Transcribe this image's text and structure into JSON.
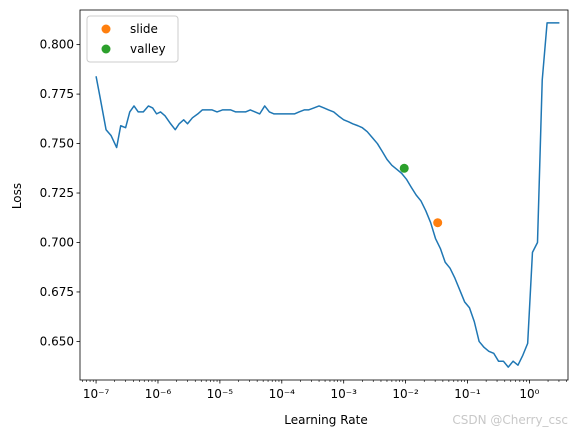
{
  "chart_data": {
    "type": "line",
    "xlabel": "Learning Rate",
    "ylabel": "Loss",
    "xscale": "log",
    "xlim": [
      5.5e-08,
      4.2
    ],
    "ylim": [
      0.6305,
      0.8175
    ],
    "grid": false,
    "legend_position": "top-left",
    "xticks": [
      {
        "value": 1e-07,
        "label": "10⁻⁷"
      },
      {
        "value": 1e-06,
        "label": "10⁻⁶"
      },
      {
        "value": 1e-05,
        "label": "10⁻⁵"
      },
      {
        "value": 0.0001,
        "label": "10⁻⁴"
      },
      {
        "value": 0.001,
        "label": "10⁻³"
      },
      {
        "value": 0.01,
        "label": "10⁻²"
      },
      {
        "value": 0.1,
        "label": "10⁻¹"
      },
      {
        "value": 1,
        "label": "10⁰"
      }
    ],
    "yticks": [
      {
        "value": 0.65,
        "label": "0.650"
      },
      {
        "value": 0.675,
        "label": "0.675"
      },
      {
        "value": 0.7,
        "label": "0.700"
      },
      {
        "value": 0.725,
        "label": "0.725"
      },
      {
        "value": 0.75,
        "label": "0.750"
      },
      {
        "value": 0.775,
        "label": "0.775"
      },
      {
        "value": 0.8,
        "label": "0.800"
      }
    ],
    "series": [
      {
        "color": "#1f77b4",
        "x": [
          1e-07,
          1.15e-07,
          1.45e-07,
          1.75e-07,
          2.15e-07,
          2.5e-07,
          3e-07,
          3.5e-07,
          4.1e-07,
          4.8e-07,
          5.8e-07,
          7e-07,
          8.2e-07,
          9.5e-07,
          1.1e-06,
          1.3e-06,
          1.6e-06,
          1.9e-06,
          2.2e-06,
          2.6e-06,
          3e-06,
          3.6e-06,
          4.4e-06,
          5.2e-06,
          6.3e-06,
          7.5e-06,
          9e-06,
          1.1e-05,
          1.3e-05,
          1.5e-05,
          1.8e-05,
          2.2e-05,
          2.6e-05,
          3.1e-05,
          3.7e-05,
          4.4e-05,
          5.3e-05,
          6.3e-05,
          7.5e-05,
          9e-05,
          0.00011,
          0.00013,
          0.00016,
          0.00019,
          0.00023,
          0.00027,
          0.00033,
          0.0004,
          0.00048,
          0.00057,
          0.00069,
          0.00082,
          0.001,
          0.0012,
          0.0014,
          0.0017,
          0.002,
          0.0024,
          0.0029,
          0.0035,
          0.0042,
          0.005,
          0.006,
          0.0072,
          0.0086,
          0.0103,
          0.0123,
          0.0148,
          0.0177,
          0.0212,
          0.0254,
          0.0304,
          0.0364,
          0.0436,
          0.0522,
          0.0625,
          0.0749,
          0.0897,
          0.1075,
          0.1287,
          0.154,
          0.185,
          0.221,
          0.265,
          0.317,
          0.38,
          0.455,
          0.545,
          0.653,
          0.782,
          0.937,
          1.12,
          1.35,
          1.61,
          1.93,
          2.31,
          2.77,
          3.05
        ],
        "values": [
          0.784,
          0.774,
          0.757,
          0.754,
          0.748,
          0.759,
          0.758,
          0.766,
          0.769,
          0.766,
          0.766,
          0.769,
          0.768,
          0.765,
          0.766,
          0.764,
          0.76,
          0.757,
          0.76,
          0.762,
          0.76,
          0.763,
          0.765,
          0.767,
          0.767,
          0.767,
          0.766,
          0.767,
          0.767,
          0.767,
          0.766,
          0.766,
          0.766,
          0.767,
          0.766,
          0.765,
          0.769,
          0.766,
          0.765,
          0.765,
          0.765,
          0.765,
          0.765,
          0.766,
          0.767,
          0.767,
          0.768,
          0.769,
          0.768,
          0.767,
          0.766,
          0.764,
          0.762,
          0.761,
          0.76,
          0.759,
          0.758,
          0.756,
          0.753,
          0.75,
          0.746,
          0.742,
          0.739,
          0.737,
          0.735,
          0.732,
          0.728,
          0.724,
          0.721,
          0.716,
          0.71,
          0.702,
          0.697,
          0.69,
          0.687,
          0.682,
          0.676,
          0.67,
          0.667,
          0.66,
          0.65,
          0.647,
          0.645,
          0.644,
          0.64,
          0.64,
          0.637,
          0.64,
          0.638,
          0.643,
          0.649,
          0.695,
          0.7,
          0.782,
          0.811,
          0.811,
          0.811,
          0.811
        ]
      }
    ],
    "markers": [
      {
        "name": "slide",
        "color": "#ff7f0e",
        "x": 0.033,
        "y": 0.71
      },
      {
        "name": "valley",
        "color": "#2ca02c",
        "x": 0.0095,
        "y": 0.7375
      }
    ]
  },
  "watermark": "CSDN @Cherry_csc"
}
